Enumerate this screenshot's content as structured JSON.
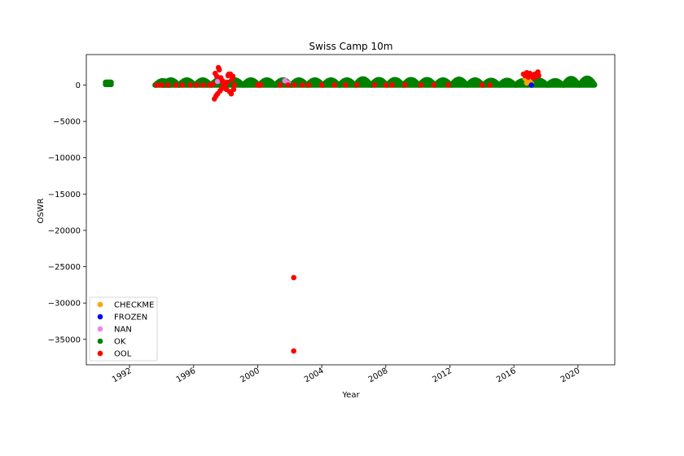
{
  "chart_data": {
    "type": "scatter",
    "title": "Swiss Camp 10m",
    "xlabel": "Year",
    "ylabel": "OSWR",
    "xlim": [
      1989.3,
      2022.3
    ],
    "ylim": [
      -38500,
      4200
    ],
    "x_ticks": [
      1992,
      1996,
      2000,
      2004,
      2008,
      2012,
      2016,
      2020
    ],
    "x_tick_labels": [
      "1992",
      "1996",
      "2000",
      "2004",
      "2008",
      "2012",
      "2016",
      "2020"
    ],
    "y_ticks": [
      0,
      -5000,
      -10000,
      -15000,
      -20000,
      -25000,
      -30000,
      -35000
    ],
    "y_tick_labels": [
      "0",
      "−5000",
      "−10000",
      "−15000",
      "−20000",
      "−25000",
      "−30000",
      "−35000"
    ],
    "grid": false,
    "legend_position": "lower-left",
    "series": [
      {
        "name": "CHECKME",
        "color": "#ffa500",
        "points": [
          [
            2016.8,
            300
          ],
          [
            2016.9,
            600
          ],
          [
            2017.0,
            400
          ],
          [
            2017.1,
            200
          ],
          [
            2016.7,
            900
          ]
        ]
      },
      {
        "name": "FROZEN",
        "color": "#0000ff",
        "points": [
          [
            2017.1,
            0
          ]
        ]
      },
      {
        "name": "NAN",
        "color": "#ee82ee",
        "points": [
          [
            1997.5,
            500
          ],
          [
            1998.0,
            300
          ],
          [
            2001.7,
            600
          ],
          [
            2001.9,
            300
          ]
        ]
      },
      {
        "name": "OK",
        "color": "#008000",
        "seasons": [
          {
            "year": 1990,
            "amp": 550
          },
          {
            "year": 1993,
            "amp": 600
          },
          {
            "year": 1994,
            "amp": 700
          },
          {
            "year": 1995,
            "amp": 700
          },
          {
            "year": 1996,
            "amp": 700
          },
          {
            "year": 1997,
            "amp": 700
          },
          {
            "year": 1998,
            "amp": 700
          },
          {
            "year": 1999,
            "amp": 700
          },
          {
            "year": 2000,
            "amp": 700
          },
          {
            "year": 2001,
            "amp": 700
          },
          {
            "year": 2002,
            "amp": 700
          },
          {
            "year": 2003,
            "amp": 700
          },
          {
            "year": 2004,
            "amp": 700
          },
          {
            "year": 2005,
            "amp": 700
          },
          {
            "year": 2006,
            "amp": 850
          },
          {
            "year": 2007,
            "amp": 750
          },
          {
            "year": 2008,
            "amp": 750
          },
          {
            "year": 2009,
            "amp": 750
          },
          {
            "year": 2010,
            "amp": 750
          },
          {
            "year": 2011,
            "amp": 700
          },
          {
            "year": 2012,
            "amp": 800
          },
          {
            "year": 2013,
            "amp": 700
          },
          {
            "year": 2014,
            "amp": 650
          },
          {
            "year": 2015,
            "amp": 650
          },
          {
            "year": 2016,
            "amp": 600
          },
          {
            "year": 2017,
            "amp": 650
          },
          {
            "year": 2018,
            "amp": 600
          },
          {
            "year": 2019,
            "amp": 900
          },
          {
            "year": 2020,
            "amp": 950
          }
        ]
      },
      {
        "name": "OOL",
        "color": "#ff0000",
        "points": [
          [
            1993.7,
            0
          ],
          [
            1994.0,
            0
          ],
          [
            1994.4,
            0
          ],
          [
            1994.9,
            0
          ],
          [
            1995.3,
            0
          ],
          [
            1995.8,
            0
          ],
          [
            1996.2,
            0
          ],
          [
            1996.6,
            0
          ],
          [
            1997.0,
            0
          ],
          [
            1997.2,
            100
          ],
          [
            1997.3,
            -1900
          ],
          [
            1997.35,
            1600
          ],
          [
            1997.4,
            -1500
          ],
          [
            1997.45,
            1200
          ],
          [
            1997.5,
            -1200
          ],
          [
            1997.55,
            2400
          ],
          [
            1997.6,
            2100
          ],
          [
            1997.65,
            -800
          ],
          [
            1997.7,
            1000
          ],
          [
            1997.75,
            -500
          ],
          [
            1997.8,
            600
          ],
          [
            1997.85,
            200
          ],
          [
            1997.9,
            -300
          ],
          [
            1997.95,
            300
          ],
          [
            1998.0,
            100
          ],
          [
            1998.05,
            -600
          ],
          [
            1998.1,
            400
          ],
          [
            1998.15,
            1300
          ],
          [
            1998.2,
            1500
          ],
          [
            1998.25,
            -900
          ],
          [
            1998.3,
            1500
          ],
          [
            1998.35,
            -1200
          ],
          [
            1998.4,
            800
          ],
          [
            1998.45,
            1200
          ],
          [
            1998.5,
            -600
          ],
          [
            1998.55,
            0
          ],
          [
            2000.0,
            0
          ],
          [
            2000.2,
            0
          ],
          [
            2001.4,
            0
          ],
          [
            2001.9,
            0
          ],
          [
            2002.3,
            0
          ],
          [
            2002.8,
            0
          ],
          [
            2003.2,
            0
          ],
          [
            2004.0,
            0
          ],
          [
            2004.8,
            0
          ],
          [
            2005.5,
            0
          ],
          [
            2006.2,
            0
          ],
          [
            2007.3,
            0
          ],
          [
            2008.0,
            0
          ],
          [
            2008.4,
            0
          ],
          [
            2009.2,
            0
          ],
          [
            2010.2,
            0
          ],
          [
            2011.0,
            0
          ],
          [
            2011.9,
            0
          ],
          [
            2014.0,
            0
          ],
          [
            2014.5,
            0
          ],
          [
            2016.6,
            1500
          ],
          [
            2016.7,
            1300
          ],
          [
            2016.8,
            1700
          ],
          [
            2016.9,
            1100
          ],
          [
            2017.0,
            1600
          ],
          [
            2017.1,
            1400
          ],
          [
            2017.2,
            1000
          ],
          [
            2017.3,
            1500
          ],
          [
            2017.4,
            1200
          ],
          [
            2017.5,
            1800
          ],
          [
            2017.55,
            1300
          ],
          [
            2002.25,
            -26500
          ],
          [
            2002.25,
            -36600
          ]
        ]
      }
    ]
  }
}
